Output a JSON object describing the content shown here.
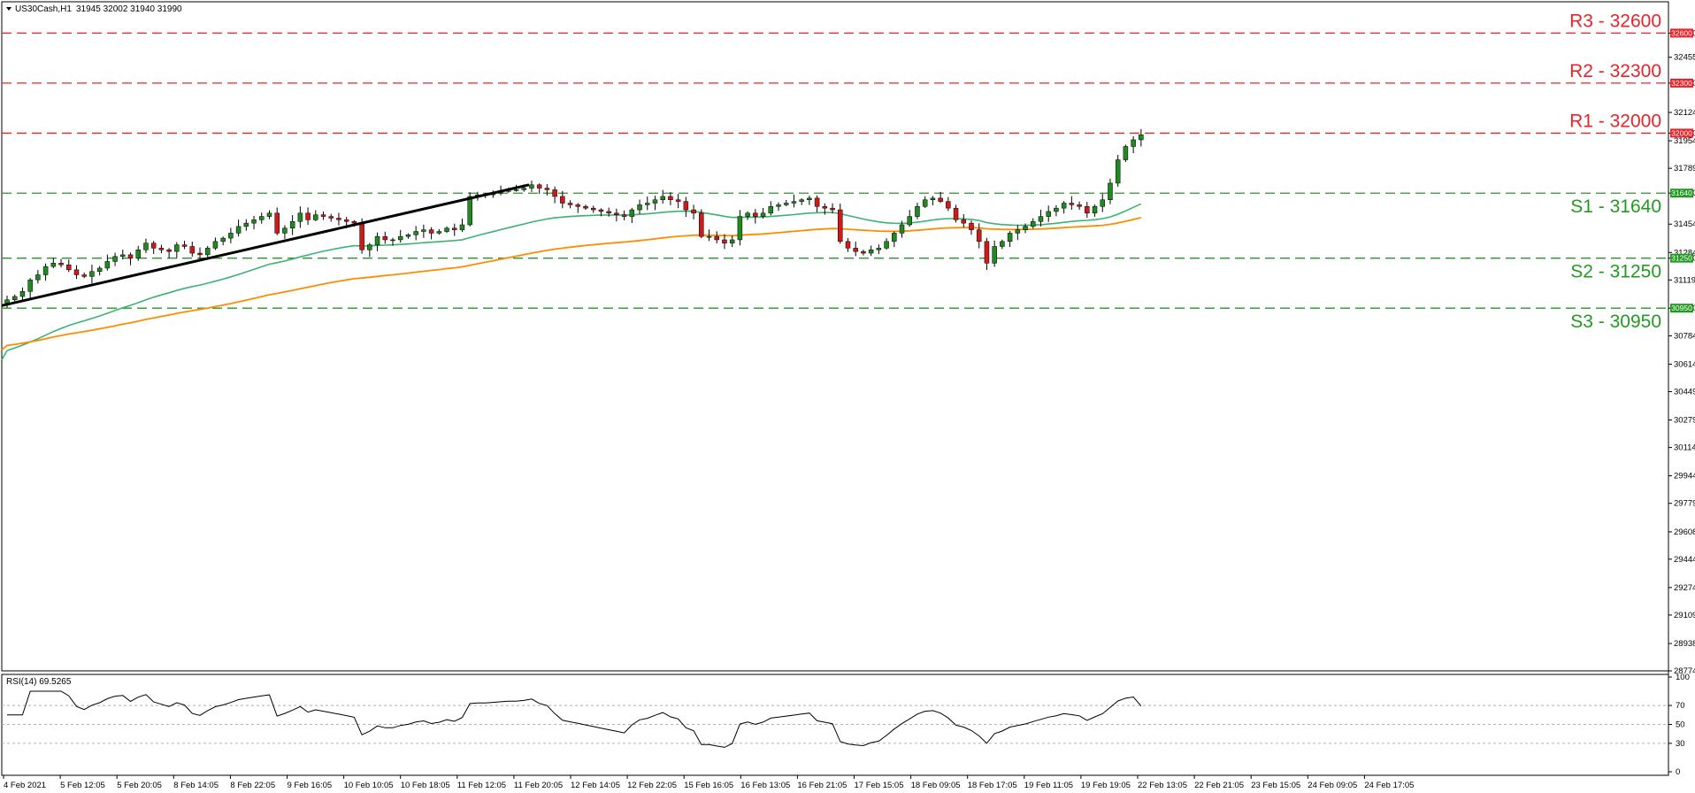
{
  "header": {
    "symbol": "US30Cash,H1",
    "ohlc": "31945 32002 31940 31990"
  },
  "colors": {
    "up": "#1f8a1f",
    "down": "#d01919",
    "resistance": "#e8232a",
    "support": "#229a22",
    "ma_fast": "#3cb371",
    "ma_slow": "#ff8c00",
    "trendline": "#000000",
    "rsi": "#000000"
  },
  "chart_data": {
    "type": "candlestick",
    "ylim": [
      28774,
      32788
    ],
    "y_ticks": [
      "32600",
      "32455",
      "32300",
      "32124",
      "32000",
      "31954",
      "31789",
      "31640",
      "31454",
      "31284",
      "31250",
      "31119",
      "30950",
      "30784",
      "30614",
      "30449",
      "30279",
      "30114",
      "29944",
      "29779",
      "29608",
      "29444",
      "29274",
      "29109",
      "28938",
      "28774"
    ],
    "x_labels": [
      "4 Feb 2021",
      "5 Feb 12:05",
      "5 Feb 20:05",
      "8 Feb 14:05",
      "8 Feb 22:05",
      "9 Feb 16:05",
      "10 Feb 10:05",
      "10 Feb 18:05",
      "11 Feb 12:05",
      "11 Feb 20:05",
      "12 Feb 14:05",
      "12 Feb 22:05",
      "15 Feb 16:05",
      "16 Feb 13:05",
      "16 Feb 21:05",
      "17 Feb 15:05",
      "18 Feb 09:05",
      "18 Feb 17:05",
      "19 Feb 11:05",
      "19 Feb 19:05",
      "22 Feb 13:05",
      "22 Feb 21:05",
      "23 Feb 15:05",
      "24 Feb 09:05",
      "24 Feb 17:05"
    ],
    "levels": [
      {
        "label": "R3 - 32600",
        "value": 32600,
        "kind": "resistance"
      },
      {
        "label": "R2 - 32300",
        "value": 32300,
        "kind": "resistance"
      },
      {
        "label": "R1 - 32000",
        "value": 32000,
        "kind": "resistance"
      },
      {
        "label": "S1 - 31640",
        "value": 31640,
        "kind": "support"
      },
      {
        "label": "S2 - 31250",
        "value": 31250,
        "kind": "support"
      },
      {
        "label": "S3 - 30950",
        "value": 30950,
        "kind": "support"
      }
    ],
    "candles_close": [
      31000,
      31020,
      31050,
      31120,
      31150,
      31200,
      31220,
      31210,
      31180,
      31150,
      31140,
      31170,
      31190,
      31230,
      31260,
      31270,
      31250,
      31300,
      31340,
      31310,
      31300,
      31290,
      31330,
      31320,
      31280,
      31270,
      31310,
      31350,
      31370,
      31400,
      31440,
      31460,
      31480,
      31500,
      31520,
      31400,
      31430,
      31470,
      31520,
      31480,
      31510,
      31500,
      31490,
      31480,
      31470,
      31460,
      31300,
      31330,
      31380,
      31360,
      31360,
      31380,
      31390,
      31410,
      31420,
      31400,
      31410,
      31430,
      31420,
      31450,
      31620,
      31630,
      31630,
      31640,
      31650,
      31660,
      31660,
      31670,
      31690,
      31670,
      31660,
      31620,
      31580,
      31570,
      31560,
      31550,
      31540,
      31530,
      31520,
      31510,
      31500,
      31540,
      31570,
      31580,
      31600,
      31620,
      31600,
      31590,
      31540,
      31520,
      31380,
      31380,
      31360,
      31340,
      31360,
      31500,
      31520,
      31500,
      31520,
      31560,
      31570,
      31580,
      31590,
      31600,
      31610,
      31560,
      31550,
      31540,
      31350,
      31310,
      31290,
      31280,
      31300,
      31310,
      31350,
      31400,
      31450,
      31500,
      31560,
      31600,
      31610,
      31590,
      31550,
      31480,
      31460,
      31420,
      31350,
      31220,
      31320,
      31350,
      31400,
      31420,
      31440,
      31470,
      31500,
      31530,
      31550,
      31580,
      31570,
      31560,
      31520,
      31560,
      31600,
      31700,
      31840,
      31920,
      31960,
      31990
    ],
    "rsi": {
      "label": "RSI(14) 69.5265",
      "levels": [
        100,
        70,
        50,
        30,
        0
      ],
      "last": 69.5265
    }
  }
}
